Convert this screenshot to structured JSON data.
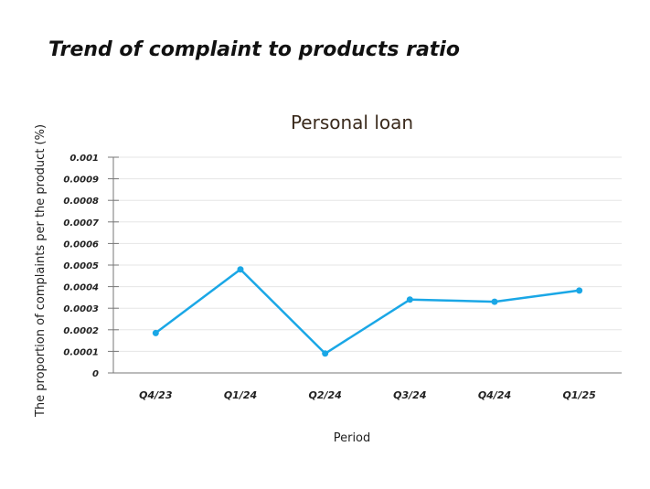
{
  "page": {
    "title": "Trend of complaint to products ratio"
  },
  "chart_data": {
    "type": "line",
    "title": "Personal loan",
    "xlabel": "Period",
    "ylabel": "The proportion of complaints per the product (%)",
    "categories": [
      "Q4/23",
      "Q1/24",
      "Q2/24",
      "Q3/24",
      "Q4/24",
      "Q1/25"
    ],
    "series": [
      {
        "values": [
          0.000185,
          0.00048,
          9e-05,
          0.00034,
          0.00033,
          0.000382
        ]
      }
    ],
    "ylim": [
      0,
      0.001
    ],
    "yticks": [
      "0",
      "0.0001",
      "0.0002",
      "0.0003",
      "0.0004",
      "0.0005",
      "0.0006",
      "0.0007",
      "0.0008",
      "0.0009",
      "0.001"
    ],
    "grid": true,
    "colors": {
      "line": "#1aa7e6",
      "grid": "#e6e6e6",
      "axis": "#777777"
    }
  }
}
